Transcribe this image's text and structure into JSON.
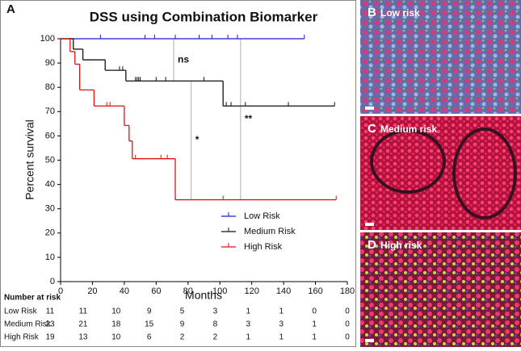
{
  "chart_data": {
    "type": "survival",
    "title": "DSS using Combination Biomarker",
    "x_label": "Months",
    "y_label": "Percent survival",
    "xlim": [
      0,
      180
    ],
    "xticks": [
      0,
      20,
      40,
      60,
      80,
      100,
      120,
      140,
      160,
      180
    ],
    "ylim": [
      0,
      100
    ],
    "yticks": [
      0,
      10,
      20,
      30,
      40,
      50,
      60,
      70,
      80,
      90,
      100
    ],
    "legend": "lower right",
    "series": [
      {
        "name": "Low Risk",
        "color": "#1a1adc",
        "x": [
          0,
          153
        ],
        "values": [
          100,
          100
        ],
        "censor_x": [
          25,
          53,
          59,
          72,
          87,
          95,
          105,
          111,
          153
        ],
        "censor_y": [
          100,
          100,
          100,
          100,
          100,
          100,
          100,
          100,
          100
        ]
      },
      {
        "name": "Medium Risk",
        "color": "#111111",
        "x": [
          0,
          8,
          14,
          28,
          41,
          102,
          172
        ],
        "values": [
          100,
          95.7,
          91.3,
          87,
          82.6,
          72.3,
          72.3
        ],
        "censor_x": [
          37,
          39,
          47,
          48,
          49,
          50,
          60,
          66,
          90,
          104,
          107,
          116,
          143,
          172
        ],
        "censor_y": [
          87,
          87,
          82.6,
          82.6,
          82.6,
          82.6,
          82.6,
          82.6,
          82.6,
          72.3,
          72.3,
          72.3,
          72.3,
          72.3
        ]
      },
      {
        "name": "High Risk",
        "color": "#e01010",
        "x": [
          0,
          6,
          9,
          12,
          21,
          40,
          43,
          45,
          72,
          173
        ],
        "values": [
          100,
          94.7,
          89.5,
          78.9,
          72.3,
          64.3,
          57.9,
          50.6,
          33.7,
          33.7
        ],
        "censor_x": [
          29,
          31,
          47,
          63,
          67,
          102,
          173
        ],
        "censor_y": [
          72.3,
          72.3,
          50.6,
          50.6,
          50.6,
          33.7,
          33.7
        ]
      }
    ],
    "annotations": [
      {
        "label": "ns",
        "x": 71,
        "from": 100,
        "to": 82.6
      },
      {
        "label": "*",
        "x": 82,
        "from": 82.6,
        "to": 33.7
      },
      {
        "label": "**",
        "x": 113,
        "from": 100,
        "to": 33.7
      }
    ]
  },
  "figure": {
    "panel_label": "A",
    "risk_table": {
      "header": "Number at risk",
      "rows": [
        {
          "name": "Low Risk",
          "counts": [
            "11",
            "11",
            "10",
            "9",
            "5",
            "3",
            "1",
            "1",
            "0",
            "0"
          ]
        },
        {
          "name": "Medium Risk",
          "counts": [
            "23",
            "21",
            "18",
            "15",
            "9",
            "8",
            "3",
            "3",
            "1",
            "0"
          ]
        },
        {
          "name": "High Risk",
          "counts": [
            "19",
            "13",
            "10",
            "6",
            "2",
            "2",
            "1",
            "1",
            "1",
            "0"
          ]
        }
      ]
    },
    "image_panels": [
      {
        "letter": "B",
        "label": "Low risk"
      },
      {
        "letter": "C",
        "label": "Medium risk"
      },
      {
        "letter": "D",
        "label": "High risk"
      }
    ]
  }
}
